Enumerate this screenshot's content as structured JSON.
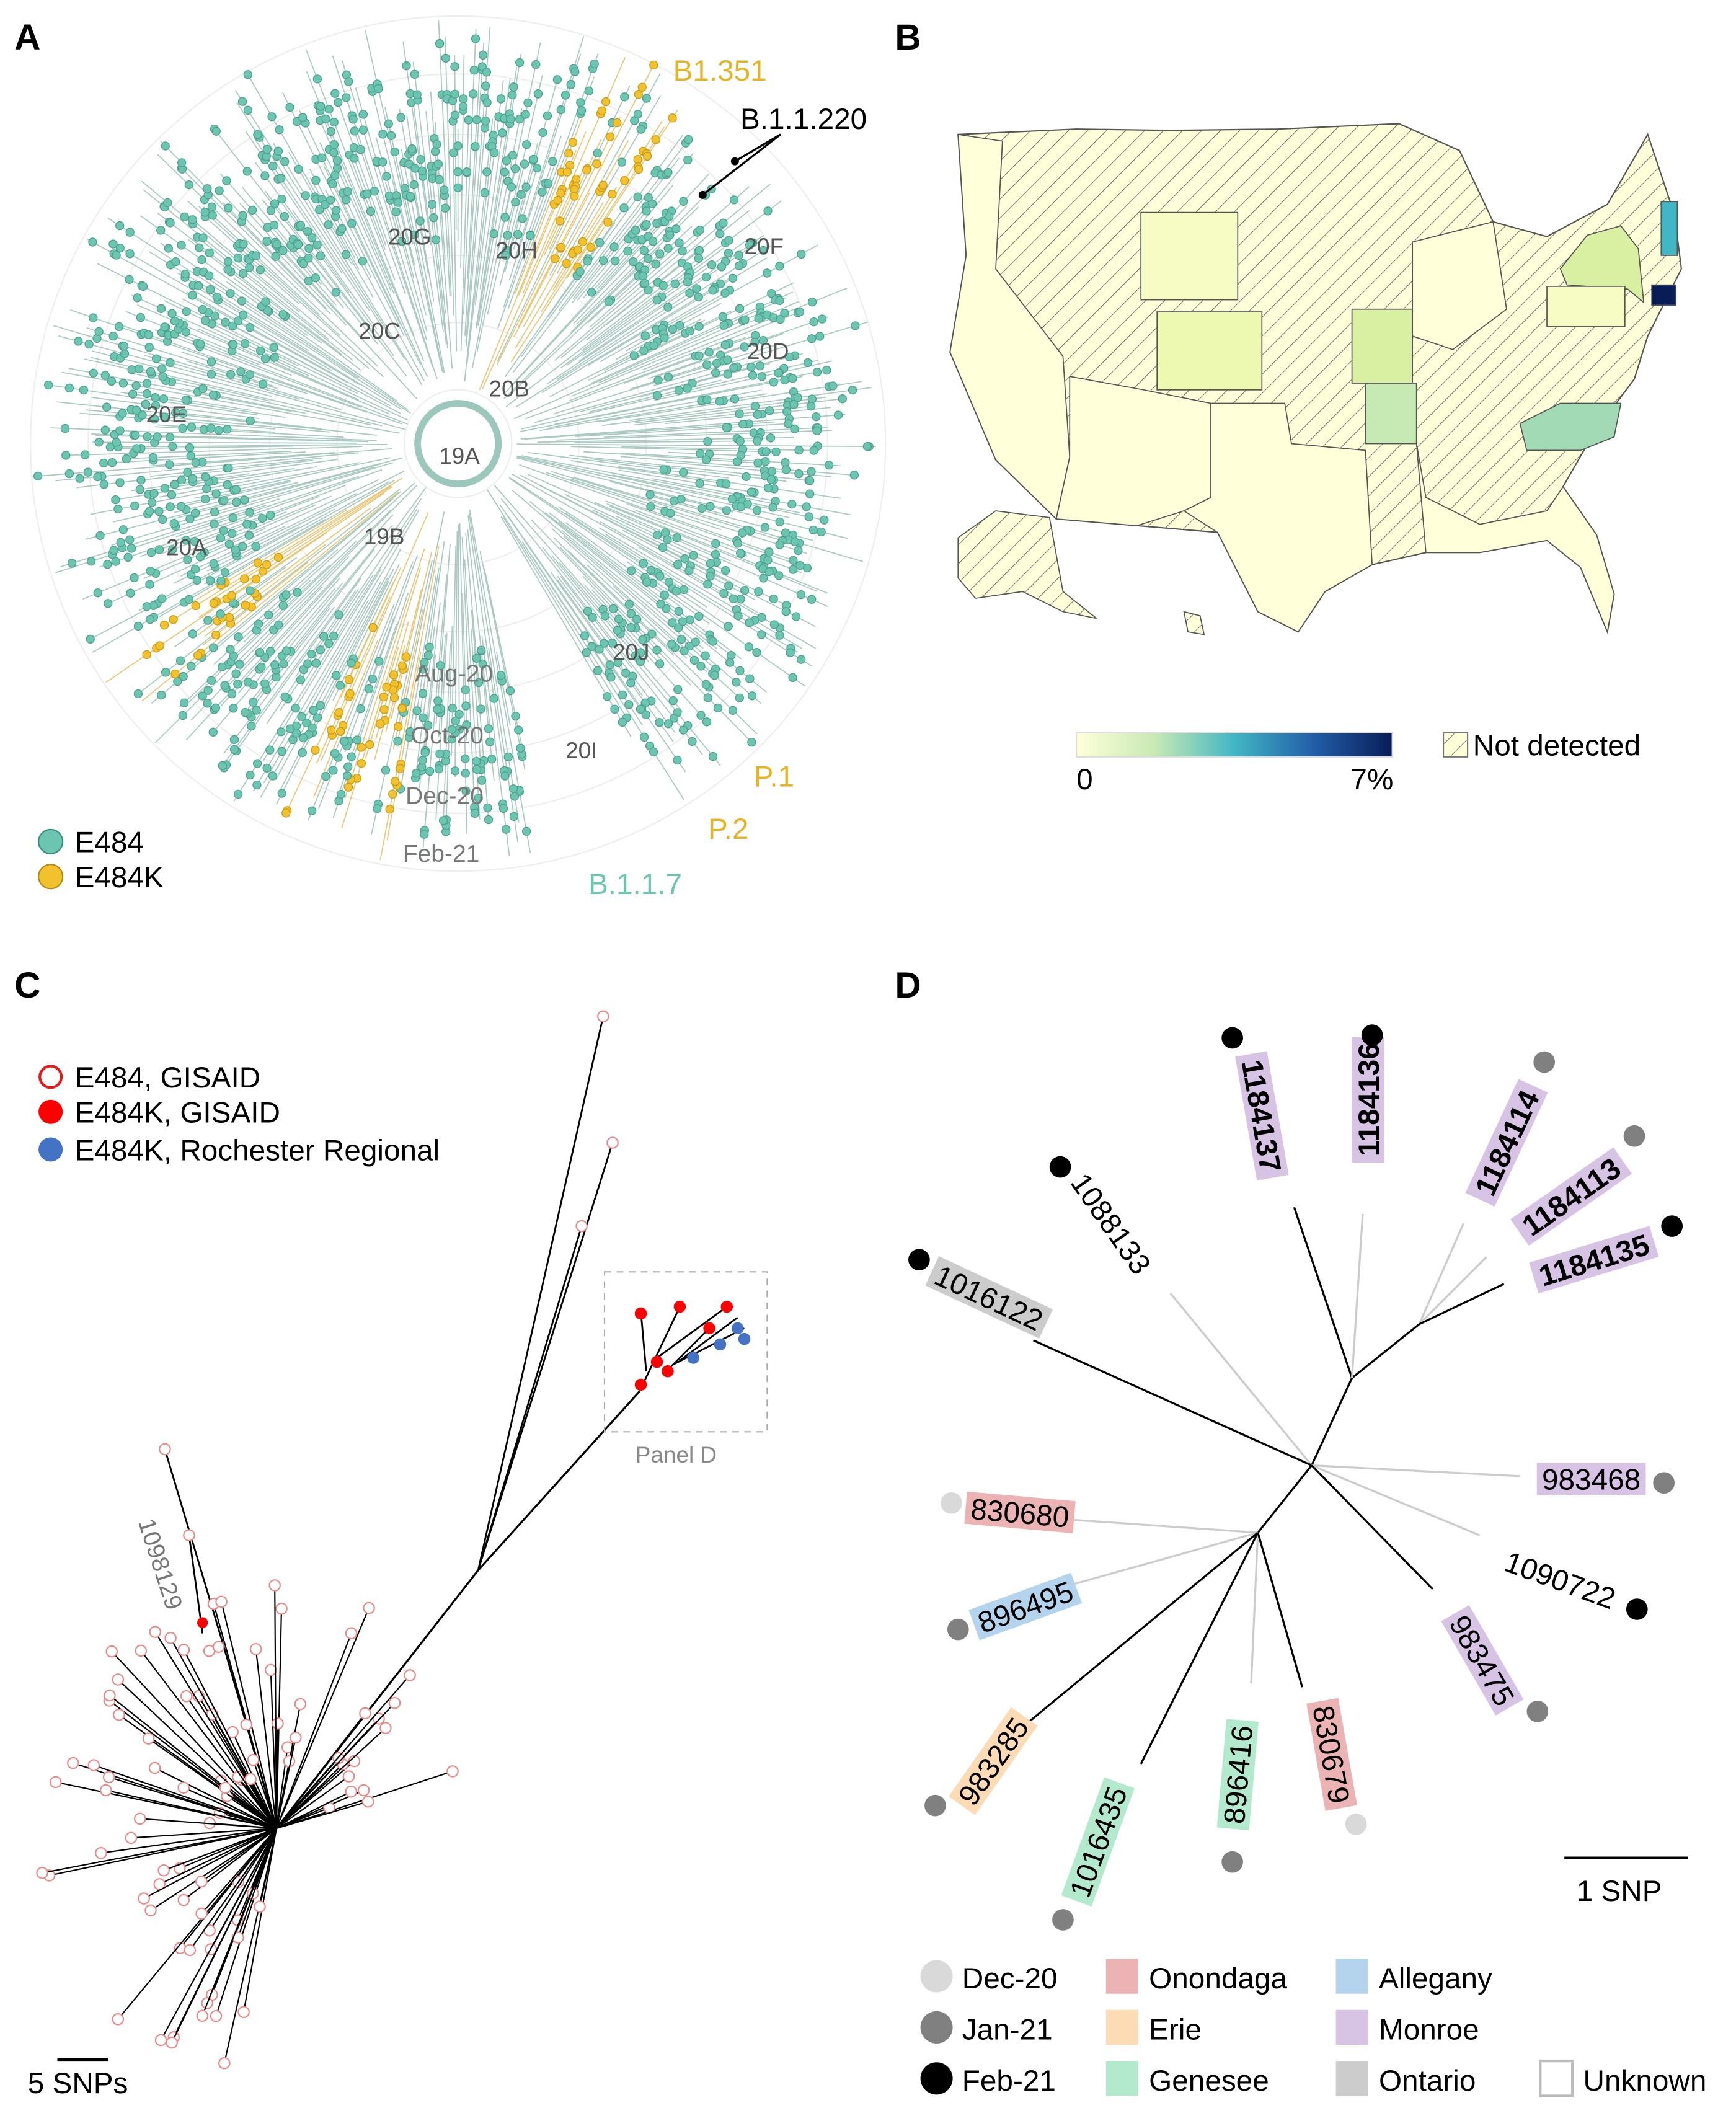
{
  "panels": {
    "a": "A",
    "b": "B",
    "c": "C",
    "d": "D"
  },
  "panel_a": {
    "clades": [
      "20G",
      "20H",
      "20F",
      "20C",
      "20D",
      "20B",
      "20E",
      "19A",
      "20A",
      "19B",
      "20J",
      "20I"
    ],
    "time_labels": [
      "Aug-20",
      "Oct-20",
      "Dec-20",
      "Feb-21"
    ],
    "lineages": {
      "b1351": "B1.351",
      "b11220": "B.1.1.220",
      "p1": "P.1",
      "p2": "P.2",
      "b117": "B.1.1.7"
    },
    "legend": [
      {
        "label": "E484",
        "color": "#6cc5b0"
      },
      {
        "label": "E484K",
        "color": "#f2c12e"
      }
    ]
  },
  "panel_b": {
    "colorbar": {
      "min_label": "0",
      "max_label": "7%",
      "colors": [
        "#ffffd9",
        "#c7e9b4",
        "#41b6c4",
        "#225ea8",
        "#081d58"
      ]
    },
    "not_detected_label": "Not detected"
  },
  "panel_c": {
    "legend": [
      {
        "label": "E484, GISAID",
        "color": "#e41a1c",
        "style": "open"
      },
      {
        "label": "E484K, GISAID",
        "color": "#ff0000",
        "style": "filled"
      },
      {
        "label": "E484K, Rochester Regional",
        "color": "#4472c4",
        "style": "filled"
      }
    ],
    "tip_label": "1098129",
    "box_label": "Panel  D",
    "scale_label": "5 SNPs"
  },
  "panel_d": {
    "tips": [
      {
        "id": "1184137",
        "county": "Monroe",
        "month": "Feb-21"
      },
      {
        "id": "1184136",
        "county": "Monroe",
        "month": "Feb-21"
      },
      {
        "id": "1184114",
        "county": "Monroe",
        "month": "Jan-21"
      },
      {
        "id": "1184113",
        "county": "Monroe",
        "month": "Jan-21"
      },
      {
        "id": "1184135",
        "county": "Monroe",
        "month": "Feb-21"
      },
      {
        "id": "1088133",
        "county": "Unknown",
        "month": "Feb-21"
      },
      {
        "id": "1016122",
        "county": "Ontario",
        "month": "Feb-21"
      },
      {
        "id": "983468",
        "county": "Monroe",
        "month": "Jan-21"
      },
      {
        "id": "1090722",
        "county": "Unknown",
        "month": "Feb-21"
      },
      {
        "id": "830680",
        "county": "Onondaga",
        "month": "Dec-20"
      },
      {
        "id": "896495",
        "county": "Allegany",
        "month": "Jan-21"
      },
      {
        "id": "983285",
        "county": "Erie",
        "month": "Jan-21"
      },
      {
        "id": "1016435",
        "county": "Genesee",
        "month": "Jan-21"
      },
      {
        "id": "896416",
        "county": "Genesee",
        "month": "Jan-21"
      },
      {
        "id": "830679",
        "county": "Onondaga",
        "month": "Dec-20"
      },
      {
        "id": "983475",
        "county": "Monroe",
        "month": "Jan-21"
      }
    ],
    "scale_label": "1 SNP",
    "months": [
      {
        "label": "Dec-20",
        "color": "#d9d9d9"
      },
      {
        "label": "Jan-21",
        "color": "#808080"
      },
      {
        "label": "Feb-21",
        "color": "#000000"
      }
    ],
    "counties": [
      {
        "label": "Onondaga",
        "color": "#ebb3b3"
      },
      {
        "label": "Erie",
        "color": "#fddcb5"
      },
      {
        "label": "Genesee",
        "color": "#b3e9cc"
      },
      {
        "label": "Allegany",
        "color": "#b3d4ec"
      },
      {
        "label": "Monroe",
        "color": "#d7c3e3"
      },
      {
        "label": "Ontario",
        "color": "#cccccc"
      },
      {
        "label": "Unknown",
        "color": "#ffffff"
      }
    ]
  }
}
